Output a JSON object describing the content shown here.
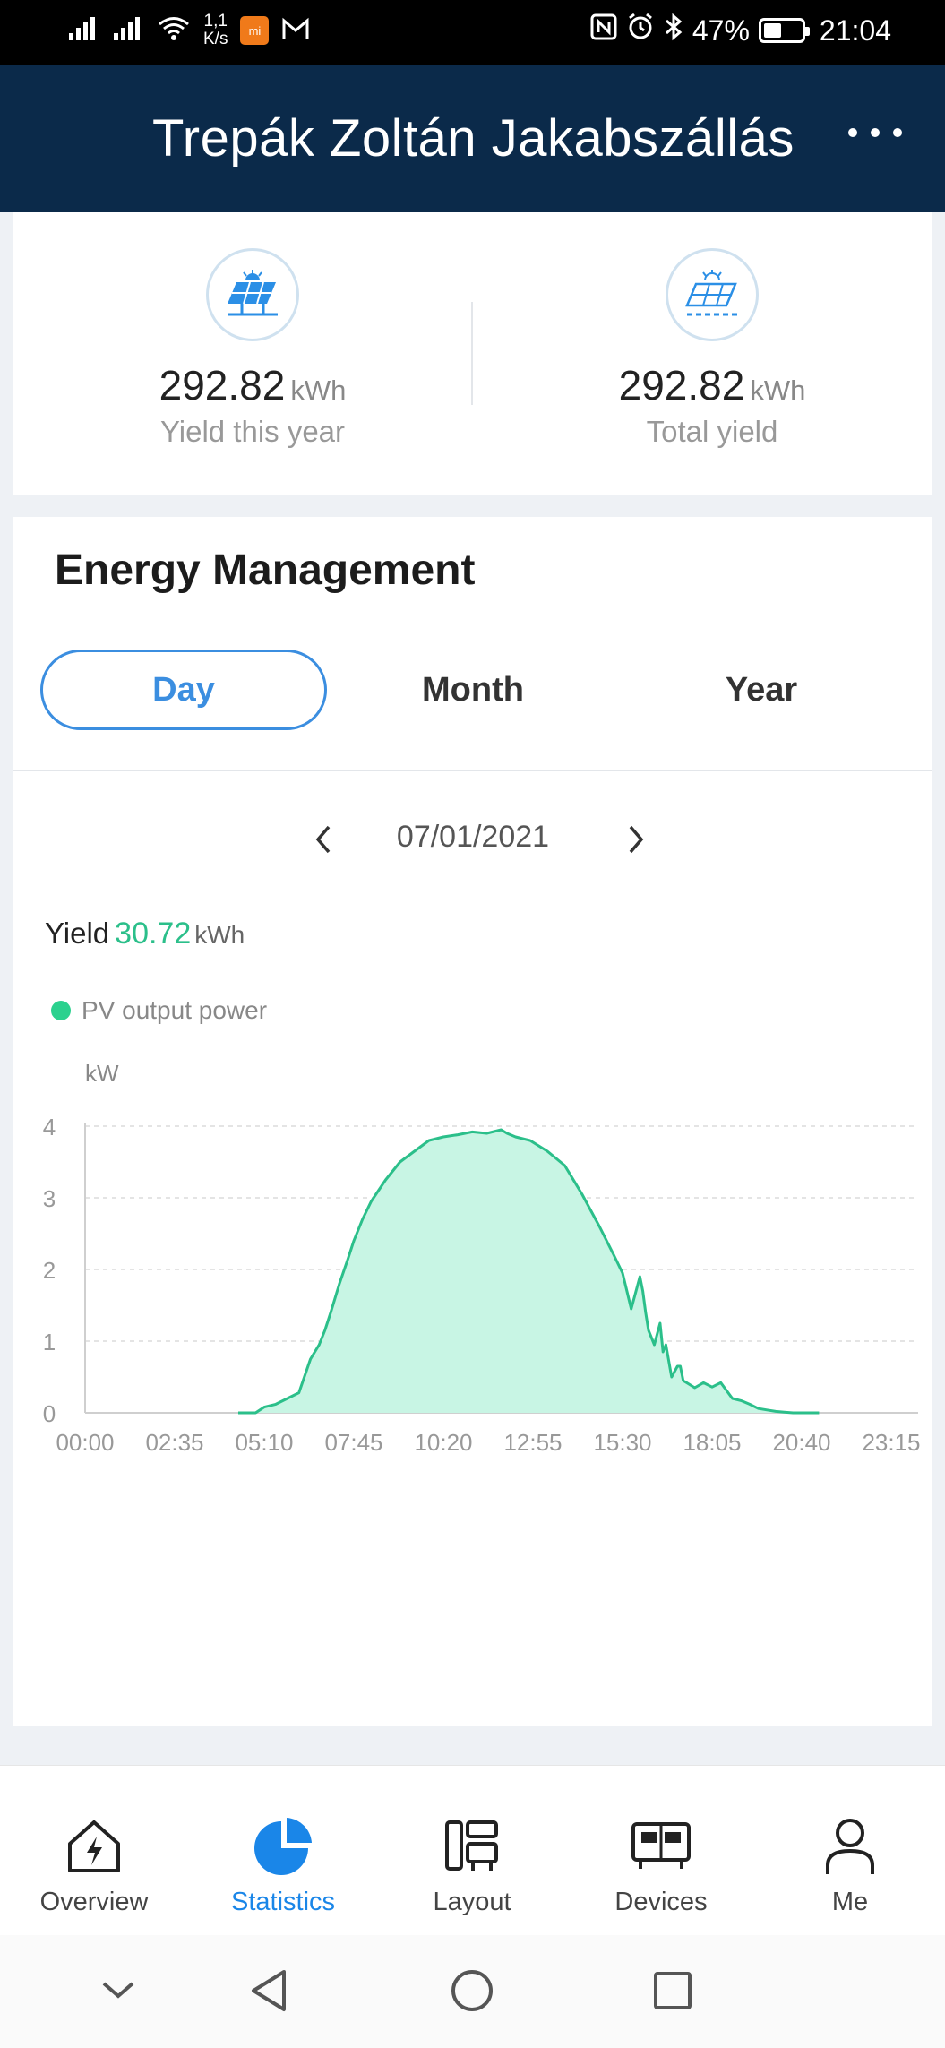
{
  "status_bar": {
    "speed_top": "1,1",
    "speed_bottom": "K/s",
    "battery": "47%",
    "time": "21:04",
    "battery_level": 0.47,
    "icons": [
      "signal-icon",
      "signal-icon",
      "wifi-icon",
      "app-notification-icon",
      "gmail-icon",
      "nfc-icon",
      "alarm-icon",
      "bluetooth-icon",
      "battery-icon"
    ]
  },
  "header": {
    "title": "Trepák Zoltán Jakabszállás",
    "menu_icon": "more-icon"
  },
  "yield_summary": {
    "year": {
      "value": "292.82",
      "unit": "kWh",
      "label": "Yield this year",
      "icon": "solar-panel-icon"
    },
    "total": {
      "value": "292.82",
      "unit": "kWh",
      "label": "Total yield",
      "icon": "solar-panel-outline-icon"
    }
  },
  "energy": {
    "title": "Energy Management",
    "tabs": [
      {
        "label": "Day",
        "active": true
      },
      {
        "label": "Month",
        "active": false
      },
      {
        "label": "Year",
        "active": false
      }
    ],
    "date": "07/01/2021",
    "yield_label": "Yield",
    "yield_value": "30.72",
    "yield_unit": "kWh",
    "legend_label": "PV output power"
  },
  "chart_data": {
    "type": "area",
    "ylabel": "kW",
    "ylim": [
      0,
      4
    ],
    "yticks": [
      "0",
      "1",
      "2",
      "3",
      "4"
    ],
    "xticks": [
      "00:00",
      "02:35",
      "05:10",
      "07:45",
      "10:20",
      "12:55",
      "15:30",
      "18:05",
      "20:40",
      "23:15"
    ],
    "grid": true,
    "series": [
      {
        "name": "PV output power",
        "color": "#2bbf8a",
        "fill": "#c8f5e4",
        "x": [
          "04:25",
          "04:55",
          "05:10",
          "05:30",
          "05:50",
          "06:10",
          "06:30",
          "06:45",
          "06:55",
          "07:05",
          "07:20",
          "07:35",
          "07:45",
          "08:00",
          "08:15",
          "08:40",
          "09:05",
          "09:30",
          "09:55",
          "10:20",
          "10:45",
          "11:10",
          "11:35",
          "12:00",
          "12:10",
          "12:25",
          "12:50",
          "13:20",
          "13:50",
          "14:20",
          "14:50",
          "15:15",
          "15:30",
          "15:45",
          "16:00",
          "16:05",
          "16:10",
          "16:15",
          "16:25",
          "16:35",
          "16:40",
          "16:45",
          "16:55",
          "17:05",
          "17:10",
          "17:15",
          "17:25",
          "17:35",
          "17:50",
          "18:05",
          "18:20",
          "18:40",
          "18:55",
          "19:10",
          "19:25",
          "19:40",
          "19:55",
          "20:10",
          "20:25",
          "20:40",
          "21:00",
          "21:10"
        ],
        "values": [
          0.0,
          0.0,
          0.08,
          0.12,
          0.2,
          0.28,
          0.75,
          0.95,
          1.15,
          1.4,
          1.8,
          2.15,
          2.4,
          2.7,
          2.95,
          3.25,
          3.5,
          3.65,
          3.8,
          3.85,
          3.88,
          3.92,
          3.9,
          3.95,
          3.9,
          3.85,
          3.8,
          3.65,
          3.45,
          3.05,
          2.6,
          2.2,
          1.95,
          1.45,
          1.9,
          1.7,
          1.4,
          1.15,
          0.95,
          1.25,
          0.85,
          0.95,
          0.5,
          0.65,
          0.65,
          0.45,
          0.4,
          0.35,
          0.42,
          0.36,
          0.42,
          0.2,
          0.17,
          0.12,
          0.06,
          0.04,
          0.02,
          0.01,
          0.0,
          0.0,
          0.0,
          0.0
        ]
      }
    ]
  },
  "bottom_nav": [
    {
      "label": "Overview",
      "icon": "overview-icon",
      "active": false
    },
    {
      "label": "Statistics",
      "icon": "statistics-pie-icon",
      "active": true
    },
    {
      "label": "Layout",
      "icon": "layout-icon",
      "active": false
    },
    {
      "label": "Devices",
      "icon": "devices-icon",
      "active": false
    },
    {
      "label": "Me",
      "icon": "profile-icon",
      "active": false
    }
  ],
  "system_nav": [
    "chevron-down-icon",
    "back-icon",
    "home-icon",
    "recents-icon"
  ]
}
